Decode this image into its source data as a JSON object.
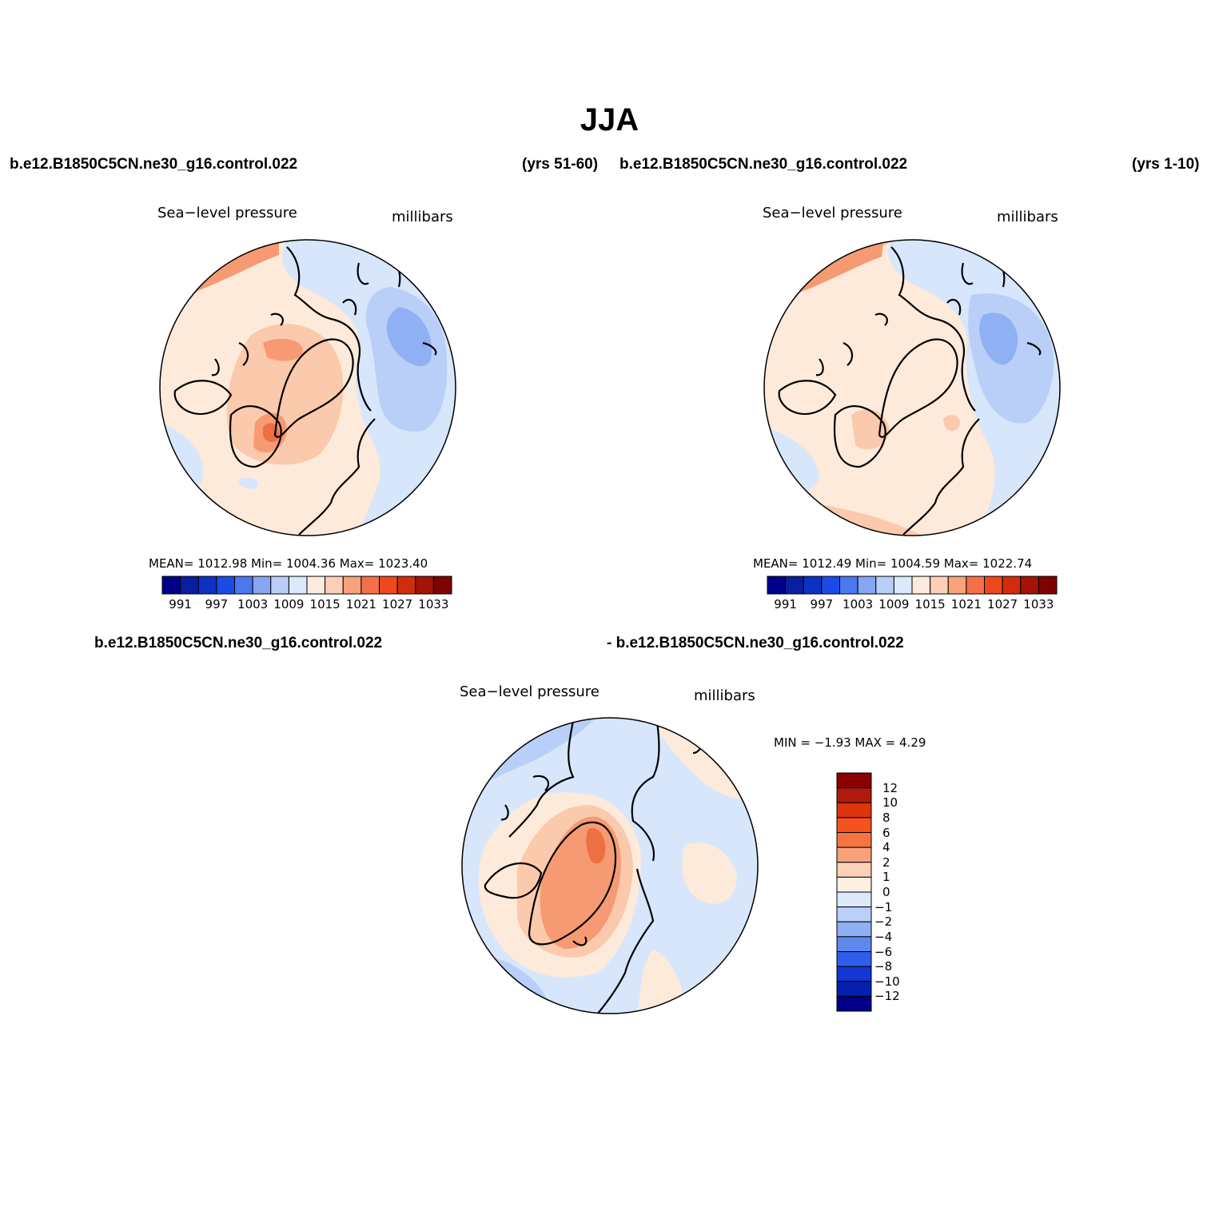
{
  "title": "JJA",
  "panels": [
    {
      "case_left": "b.e12.B1850C5CN.ne30_g16.control.022",
      "years": "(yrs 51-60)",
      "variable": "Sea−level pressure",
      "units": "millibars",
      "stats": "MEAN=  1012.98   Min=  1004.36    Max=  1023.40"
    },
    {
      "case_left": "b.e12.B1850C5CN.ne30_g16.control.022",
      "years": "(yrs 1-10)",
      "variable": "Sea−level pressure",
      "units": "millibars",
      "stats": "MEAN=  1012.49   Min=  1004.59    Max=  1022.74"
    },
    {
      "case_left": "b.e12.B1850C5CN.ne30_g16.control.022",
      "case_right": "- b.e12.B1850C5CN.ne30_g16.control.022",
      "variable": "Sea−level pressure",
      "units": "millibars",
      "stats": "MIN =   −1.93  MAX =     4.29"
    }
  ],
  "horizontal_colorbar": {
    "colors": [
      "#00008b",
      "#0a1ea0",
      "#0c32c4",
      "#1b4be6",
      "#4a78ef",
      "#86a5f3",
      "#b9cdf8",
      "#dce9fb",
      "#fdebdd",
      "#fdcfb7",
      "#f9a27c",
      "#f47046",
      "#ee481c",
      "#d12d0c",
      "#a31306",
      "#7e0202"
    ],
    "labels": [
      "991",
      "997",
      "1003",
      "1009",
      "1015",
      "1021",
      "1027",
      "1033"
    ]
  },
  "vertical_colorbar": {
    "colors": [
      "#8b0000",
      "#b0190b",
      "#dd3410",
      "#f5521f",
      "#f57440",
      "#f8a27c",
      "#fdd0b8",
      "#fdf0e4",
      "#dbe9fb",
      "#bad0f8",
      "#8fb0f2",
      "#5e88ee",
      "#2f5fea",
      "#1237d4",
      "#0620ae",
      "#00008b"
    ],
    "labels": [
      "12",
      "10",
      "8",
      "6",
      "4",
      "2",
      "1",
      "0",
      "−1",
      "−2",
      "−4",
      "−6",
      "−8",
      "−10",
      "−12"
    ]
  },
  "map_fills": {
    "ocean_blue_light": "#d7e6fb",
    "ocean_blue_mid": "#b9cff8",
    "ocean_blue_strong": "#8fb0f2",
    "warm_light": "#fdeadb",
    "warm_mid": "#fbc9ac",
    "warm_strong": "#f59a72",
    "warm_deep": "#ef6f45"
  }
}
